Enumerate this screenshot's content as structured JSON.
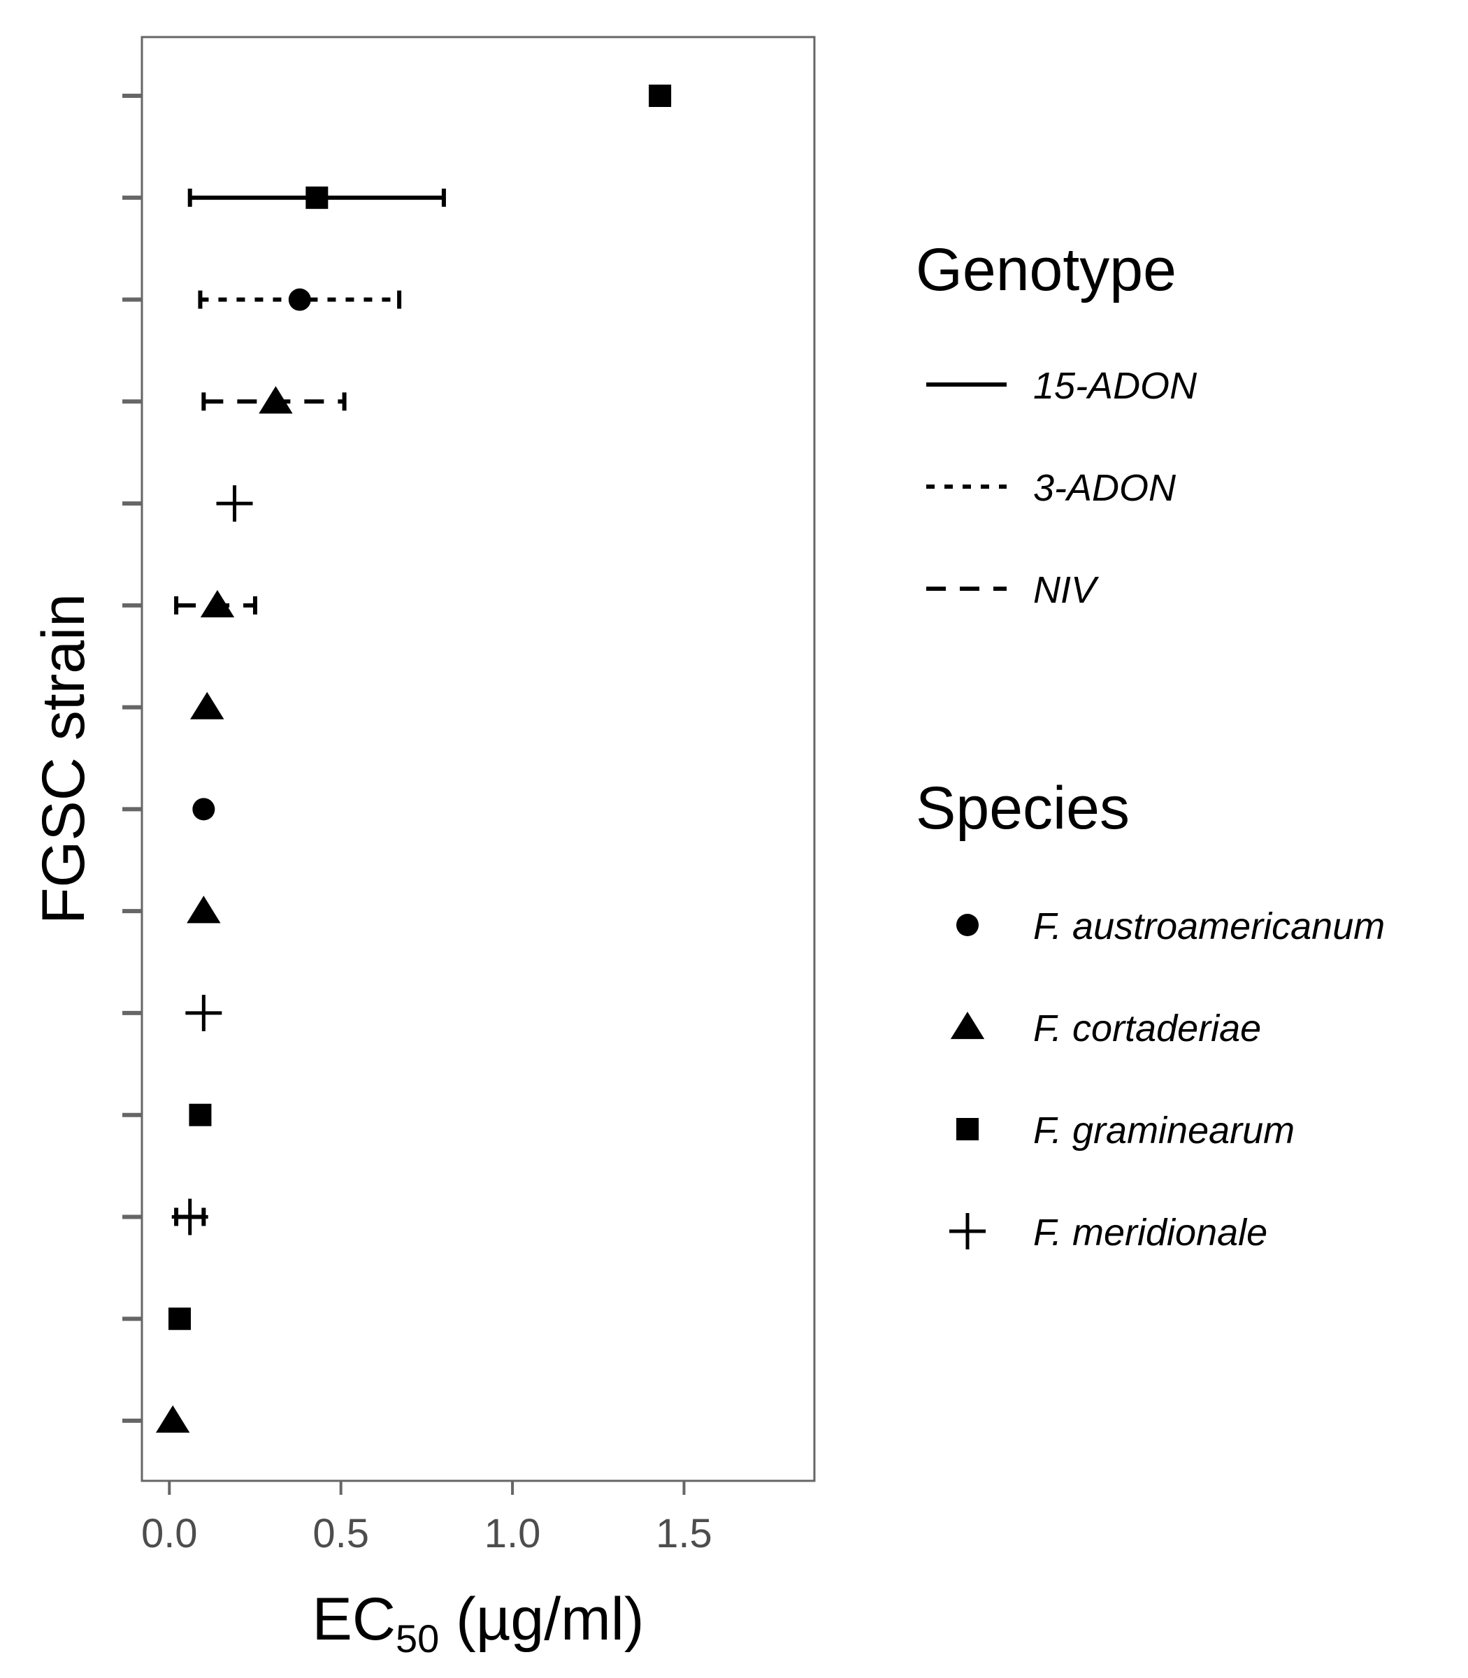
{
  "chart_data": {
    "type": "scatter",
    "xlabel_main": "EC",
    "xlabel_sub": "50",
    "xlabel_unit": " (µg/ml)",
    "ylabel": "FGSC strain",
    "xlim": [
      -0.08,
      1.88
    ],
    "xticks": [
      {
        "value": 0.0,
        "label": "0.0"
      },
      {
        "value": 0.5,
        "label": "0.5"
      },
      {
        "value": 1.0,
        "label": "1.0"
      },
      {
        "value": 1.5,
        "label": "1.5"
      }
    ],
    "y_strains": 14,
    "grid": false,
    "legend_position": "right",
    "points": [
      {
        "rank": 1,
        "ec50": 0.01,
        "species": "F. cortaderiae"
      },
      {
        "rank": 2,
        "ec50": 0.03,
        "species": "F. graminearum"
      },
      {
        "rank": 3,
        "ec50": 0.06,
        "species": "F. meridionale",
        "err": [
          0.02,
          0.1
        ],
        "genotype": "15-ADON"
      },
      {
        "rank": 4,
        "ec50": 0.09,
        "species": "F. graminearum"
      },
      {
        "rank": 5,
        "ec50": 0.1,
        "species": "F. meridionale"
      },
      {
        "rank": 6,
        "ec50": 0.1,
        "species": "F. cortaderiae"
      },
      {
        "rank": 7,
        "ec50": 0.1,
        "species": "F. austroamericanum"
      },
      {
        "rank": 8,
        "ec50": 0.11,
        "species": "F. cortaderiae"
      },
      {
        "rank": 9,
        "ec50": 0.14,
        "species": "F. cortaderiae",
        "err": [
          0.02,
          0.25
        ],
        "genotype": "NIV"
      },
      {
        "rank": 10,
        "ec50": 0.19,
        "species": "F. meridionale"
      },
      {
        "rank": 11,
        "ec50": 0.31,
        "species": "F. cortaderiae",
        "err": [
          0.1,
          0.51
        ],
        "genotype": "NIV"
      },
      {
        "rank": 12,
        "ec50": 0.38,
        "species": "F. austroamericanum",
        "err": [
          0.09,
          0.67
        ],
        "genotype": "3-ADON"
      },
      {
        "rank": 13,
        "ec50": 0.43,
        "species": "F. graminearum",
        "err": [
          0.06,
          0.8
        ],
        "genotype": "15-ADON"
      },
      {
        "rank": 14,
        "ec50": 1.43,
        "species": "F. graminearum"
      }
    ],
    "legend_genotype": {
      "title": "Genotype",
      "entries": [
        {
          "label": "15-ADON",
          "linetype": "solid"
        },
        {
          "label": "3-ADON",
          "linetype": "dotted"
        },
        {
          "label": "NIV",
          "linetype": "dashed"
        }
      ]
    },
    "legend_species": {
      "title": "Species",
      "entries": [
        {
          "label": "F. austroamericanum",
          "shape": "circle"
        },
        {
          "label": "F. cortaderiae",
          "shape": "triangle"
        },
        {
          "label": "F. graminearum",
          "shape": "square"
        },
        {
          "label": "F. meridionale",
          "shape": "plus"
        }
      ]
    },
    "colors": {
      "marks": "#000000",
      "frame": "#666666",
      "ticks": "#666666",
      "tick_text": "#4d4d4d"
    }
  }
}
